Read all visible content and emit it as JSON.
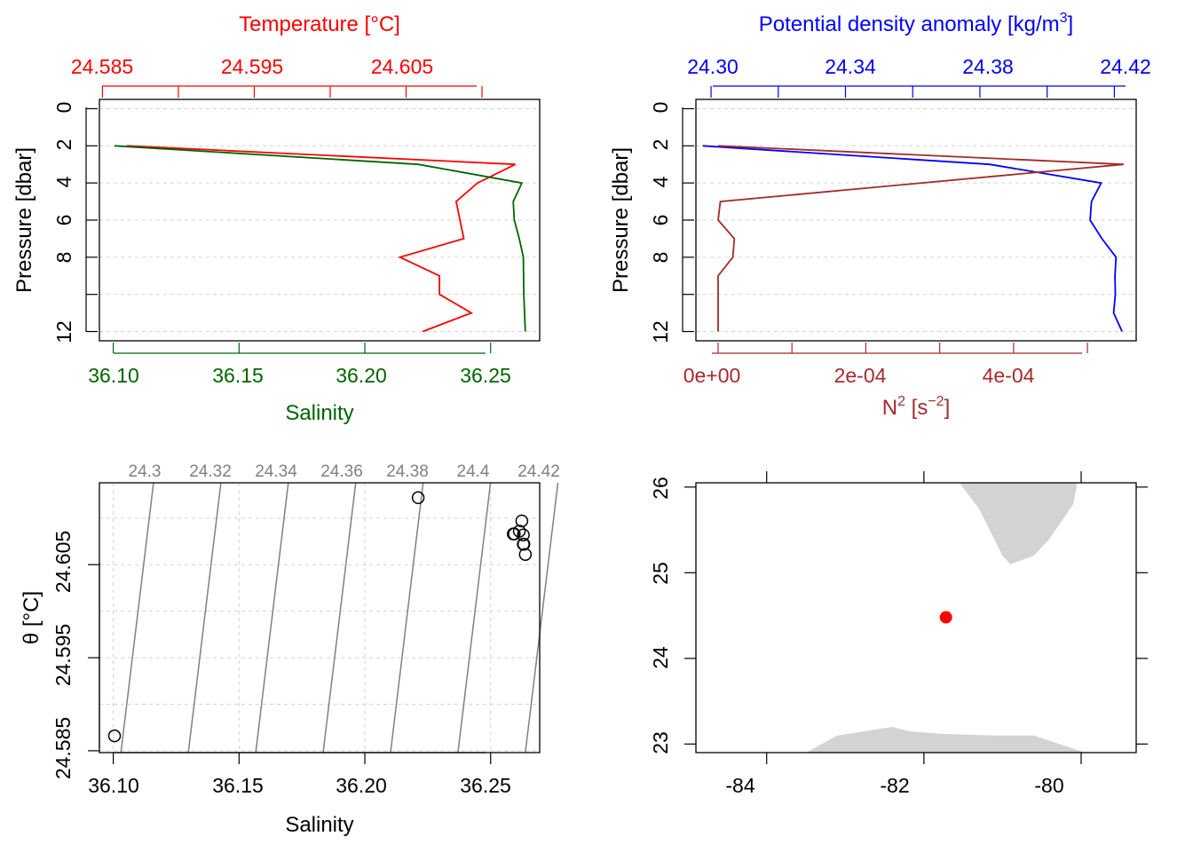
{
  "colors": {
    "temperature": "#ff0000",
    "salinity": "#006400",
    "density": "#0000ff",
    "n2": "#a52a2a",
    "isopycnal": "#808080",
    "grid": "#d3d3d3",
    "land": "#d3d3d3",
    "station": "#ff0000",
    "frame": "#000000"
  },
  "chart_data": [
    {
      "panel": "profile-temperature-salinity",
      "type": "line",
      "top_axis_title": "Temperature [°C]",
      "bottom_axis_title": "Salinity",
      "ylabel": "Pressure [dbar]",
      "y_inverted": true,
      "ylim": [
        12.5,
        -0.5
      ],
      "y_ticks": [
        "0",
        "2",
        "4",
        "6",
        "8",
        "12"
      ],
      "temperature_ticks": [
        "24.585",
        "24.595",
        "24.605"
      ],
      "temperature_xlim": [
        24.5848,
        24.6138
      ],
      "salinity_ticks": [
        "36.10",
        "36.15",
        "36.20",
        "36.25"
      ],
      "salinity_xlim": [
        36.0945,
        36.2695
      ],
      "series": [
        {
          "key": "temperature",
          "pressure": [
            2,
            3,
            4,
            5,
            7,
            8,
            9,
            10,
            11,
            12
          ],
          "values": [
            24.5866,
            24.6122,
            24.6097,
            24.6083,
            24.6088,
            24.6046,
            24.6072,
            24.6072,
            24.6093,
            24.6061
          ]
        },
        {
          "key": "salinity",
          "pressure": [
            2,
            3,
            4,
            5,
            6,
            7,
            8,
            10,
            12
          ],
          "values": [
            36.1005,
            36.2212,
            36.2624,
            36.259,
            36.2594,
            36.2614,
            36.263,
            36.2632,
            36.2638
          ]
        }
      ]
    },
    {
      "panel": "profile-density-n2",
      "type": "line",
      "top_axis_title": "Potential density anomaly [kg/m",
      "top_axis_title_sup": "3",
      "top_axis_title_end": "]",
      "bottom_axis_title_base": "N",
      "bottom_axis_title_sup1": "2",
      "bottom_axis_title_mid": " [s",
      "bottom_axis_title_sup2": "−2",
      "bottom_axis_title_end": "]",
      "ylabel": "Pressure [dbar]",
      "y_inverted": true,
      "ylim": [
        12.5,
        -0.5
      ],
      "y_ticks": [
        "0",
        "2",
        "4",
        "6",
        "8",
        "12"
      ],
      "density_ticks": [
        "24.30",
        "24.34",
        "24.38",
        "24.42"
      ],
      "density_xlim": [
        24.2955,
        24.4265
      ],
      "n2_ticks": [
        "0e+00",
        "2e-04",
        "4e-04"
      ],
      "n2_xlim": [
        -3e-05,
        0.000566
      ],
      "series": [
        {
          "key": "density",
          "pressure": [
            2,
            3,
            4,
            5,
            6,
            7,
            8,
            9,
            10,
            11,
            12
          ],
          "values": [
            24.2975,
            24.3829,
            24.4161,
            24.4132,
            24.4128,
            24.4163,
            24.4205,
            24.4202,
            24.4203,
            24.4198,
            24.4223
          ]
        },
        {
          "key": "n2",
          "pressure": [
            2,
            3,
            5,
            6,
            7,
            8,
            9,
            10,
            12
          ],
          "values": [
            0.0,
            0.000549,
            3e-06,
            0.0,
            2.2e-05,
            2e-05,
            0.0,
            0.0,
            0.0
          ]
        }
      ]
    },
    {
      "panel": "ts-diagram",
      "type": "scatter",
      "xlabel": "Salinity",
      "ylabel": "θ [°C]",
      "xlim": [
        36.0945,
        36.2695
      ],
      "ylim": [
        24.5848,
        24.6138
      ],
      "x_ticks": [
        "36.10",
        "36.15",
        "36.20",
        "36.25"
      ],
      "y_ticks": [
        "24.585",
        "24.595",
        "24.605"
      ],
      "isopycnal_labels": [
        "24.3",
        "24.32",
        "24.34",
        "24.36",
        "24.38",
        "24.4",
        "24.42"
      ],
      "points": {
        "x": [
          36.1005,
          36.2212,
          36.2624,
          36.259,
          36.2594,
          36.2614,
          36.263,
          36.2632,
          36.2638,
          36.263
        ],
        "y": [
          24.5866,
          24.6122,
          24.6097,
          24.6083,
          24.6083,
          24.6086,
          24.6072,
          24.6072,
          24.6061,
          24.6082
        ]
      }
    },
    {
      "panel": "station-map",
      "type": "map",
      "xlim": [
        -84.9,
        -79.3
      ],
      "ylim": [
        22.9,
        26.05
      ],
      "x_ticks": [
        "-84",
        "-82",
        "-80"
      ],
      "y_ticks": [
        "23",
        "24",
        "25",
        "26"
      ],
      "station": {
        "lon": -81.72,
        "lat": 24.48
      },
      "land": [
        {
          "lon": [
            -81.55,
            -80.05,
            -80.1,
            -80.4,
            -80.6,
            -80.9,
            -81.0,
            -81.3,
            -81.55
          ],
          "lat": [
            26.05,
            26.05,
            25.8,
            25.4,
            25.2,
            25.1,
            25.2,
            25.75,
            26.05
          ]
        },
        {
          "lon": [
            -83.5,
            -79.95,
            -80.6,
            -81.1,
            -81.8,
            -82.2,
            -82.4,
            -83.1,
            -83.5
          ],
          "lat": [
            22.9,
            22.9,
            23.1,
            23.1,
            23.12,
            23.15,
            23.2,
            23.1,
            22.9
          ]
        }
      ]
    }
  ]
}
